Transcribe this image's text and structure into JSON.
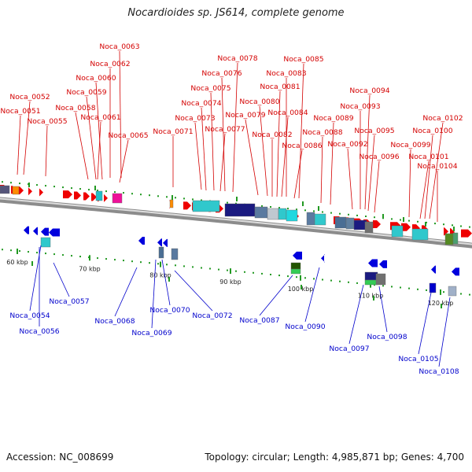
{
  "title": "Nocardioides sp. JS614, complete genome",
  "footer": {
    "accession": "Accession: NC_008699",
    "topology": "Topology: circular; Length: 4,985,871 bp; Genes: 4,700"
  },
  "colors": {
    "forward_label": "#d40000",
    "reverse_label": "#0000cc",
    "forward_gene": "#ee0000",
    "reverse_gene": "#0000dd",
    "backbone": "#8c8c8c",
    "tick": "#229922"
  },
  "scale": [
    {
      "label": "60 kbp"
    },
    {
      "label": "70 kbp"
    },
    {
      "label": "80 kbp"
    },
    {
      "label": "90 kbp"
    },
    {
      "label": "100 kbp"
    },
    {
      "label": "110 kbp"
    },
    {
      "label": "120 kbp"
    }
  ],
  "forward_labels": [
    {
      "name": "Noca_0063"
    },
    {
      "name": "Noca_0062"
    },
    {
      "name": "Noca_0060"
    },
    {
      "name": "Noca_0059"
    },
    {
      "name": "Noca_0052"
    },
    {
      "name": "Noca_0058"
    },
    {
      "name": "Noca_0051"
    },
    {
      "name": "Noca_0061"
    },
    {
      "name": "Noca_0055"
    },
    {
      "name": "Noca_0065"
    },
    {
      "name": "Noca_0078"
    },
    {
      "name": "Noca_0076"
    },
    {
      "name": "Noca_0075"
    },
    {
      "name": "Noca_0074"
    },
    {
      "name": "Noca_0073"
    },
    {
      "name": "Noca_0071"
    },
    {
      "name": "Noca_0077"
    },
    {
      "name": "Noca_0085"
    },
    {
      "name": "Noca_0083"
    },
    {
      "name": "Noca_0081"
    },
    {
      "name": "Noca_0080"
    },
    {
      "name": "Noca_0079"
    },
    {
      "name": "Noca_0084"
    },
    {
      "name": "Noca_0082"
    },
    {
      "name": "Noca_0086"
    },
    {
      "name": "Noca_0088"
    },
    {
      "name": "Noca_0089"
    },
    {
      "name": "Noca_0094"
    },
    {
      "name": "Noca_0093"
    },
    {
      "name": "Noca_0095"
    },
    {
      "name": "Noca_0092"
    },
    {
      "name": "Noca_0096"
    },
    {
      "name": "Noca_0102"
    },
    {
      "name": "Noca_0100"
    },
    {
      "name": "Noca_0099"
    },
    {
      "name": "Noca_0101"
    },
    {
      "name": "Noca_0104"
    }
  ],
  "reverse_labels": [
    {
      "name": "Noca_0057"
    },
    {
      "name": "Noca_0054"
    },
    {
      "name": "Noca_0056"
    },
    {
      "name": "Noca_0068"
    },
    {
      "name": "Noca_0070"
    },
    {
      "name": "Noca_0069"
    },
    {
      "name": "Noca_0072"
    },
    {
      "name": "Noca_0087"
    },
    {
      "name": "Noca_0090"
    },
    {
      "name": "Noca_0097"
    },
    {
      "name": "Noca_0098"
    },
    {
      "name": "Noca_0105"
    },
    {
      "name": "Noca_0108"
    }
  ]
}
